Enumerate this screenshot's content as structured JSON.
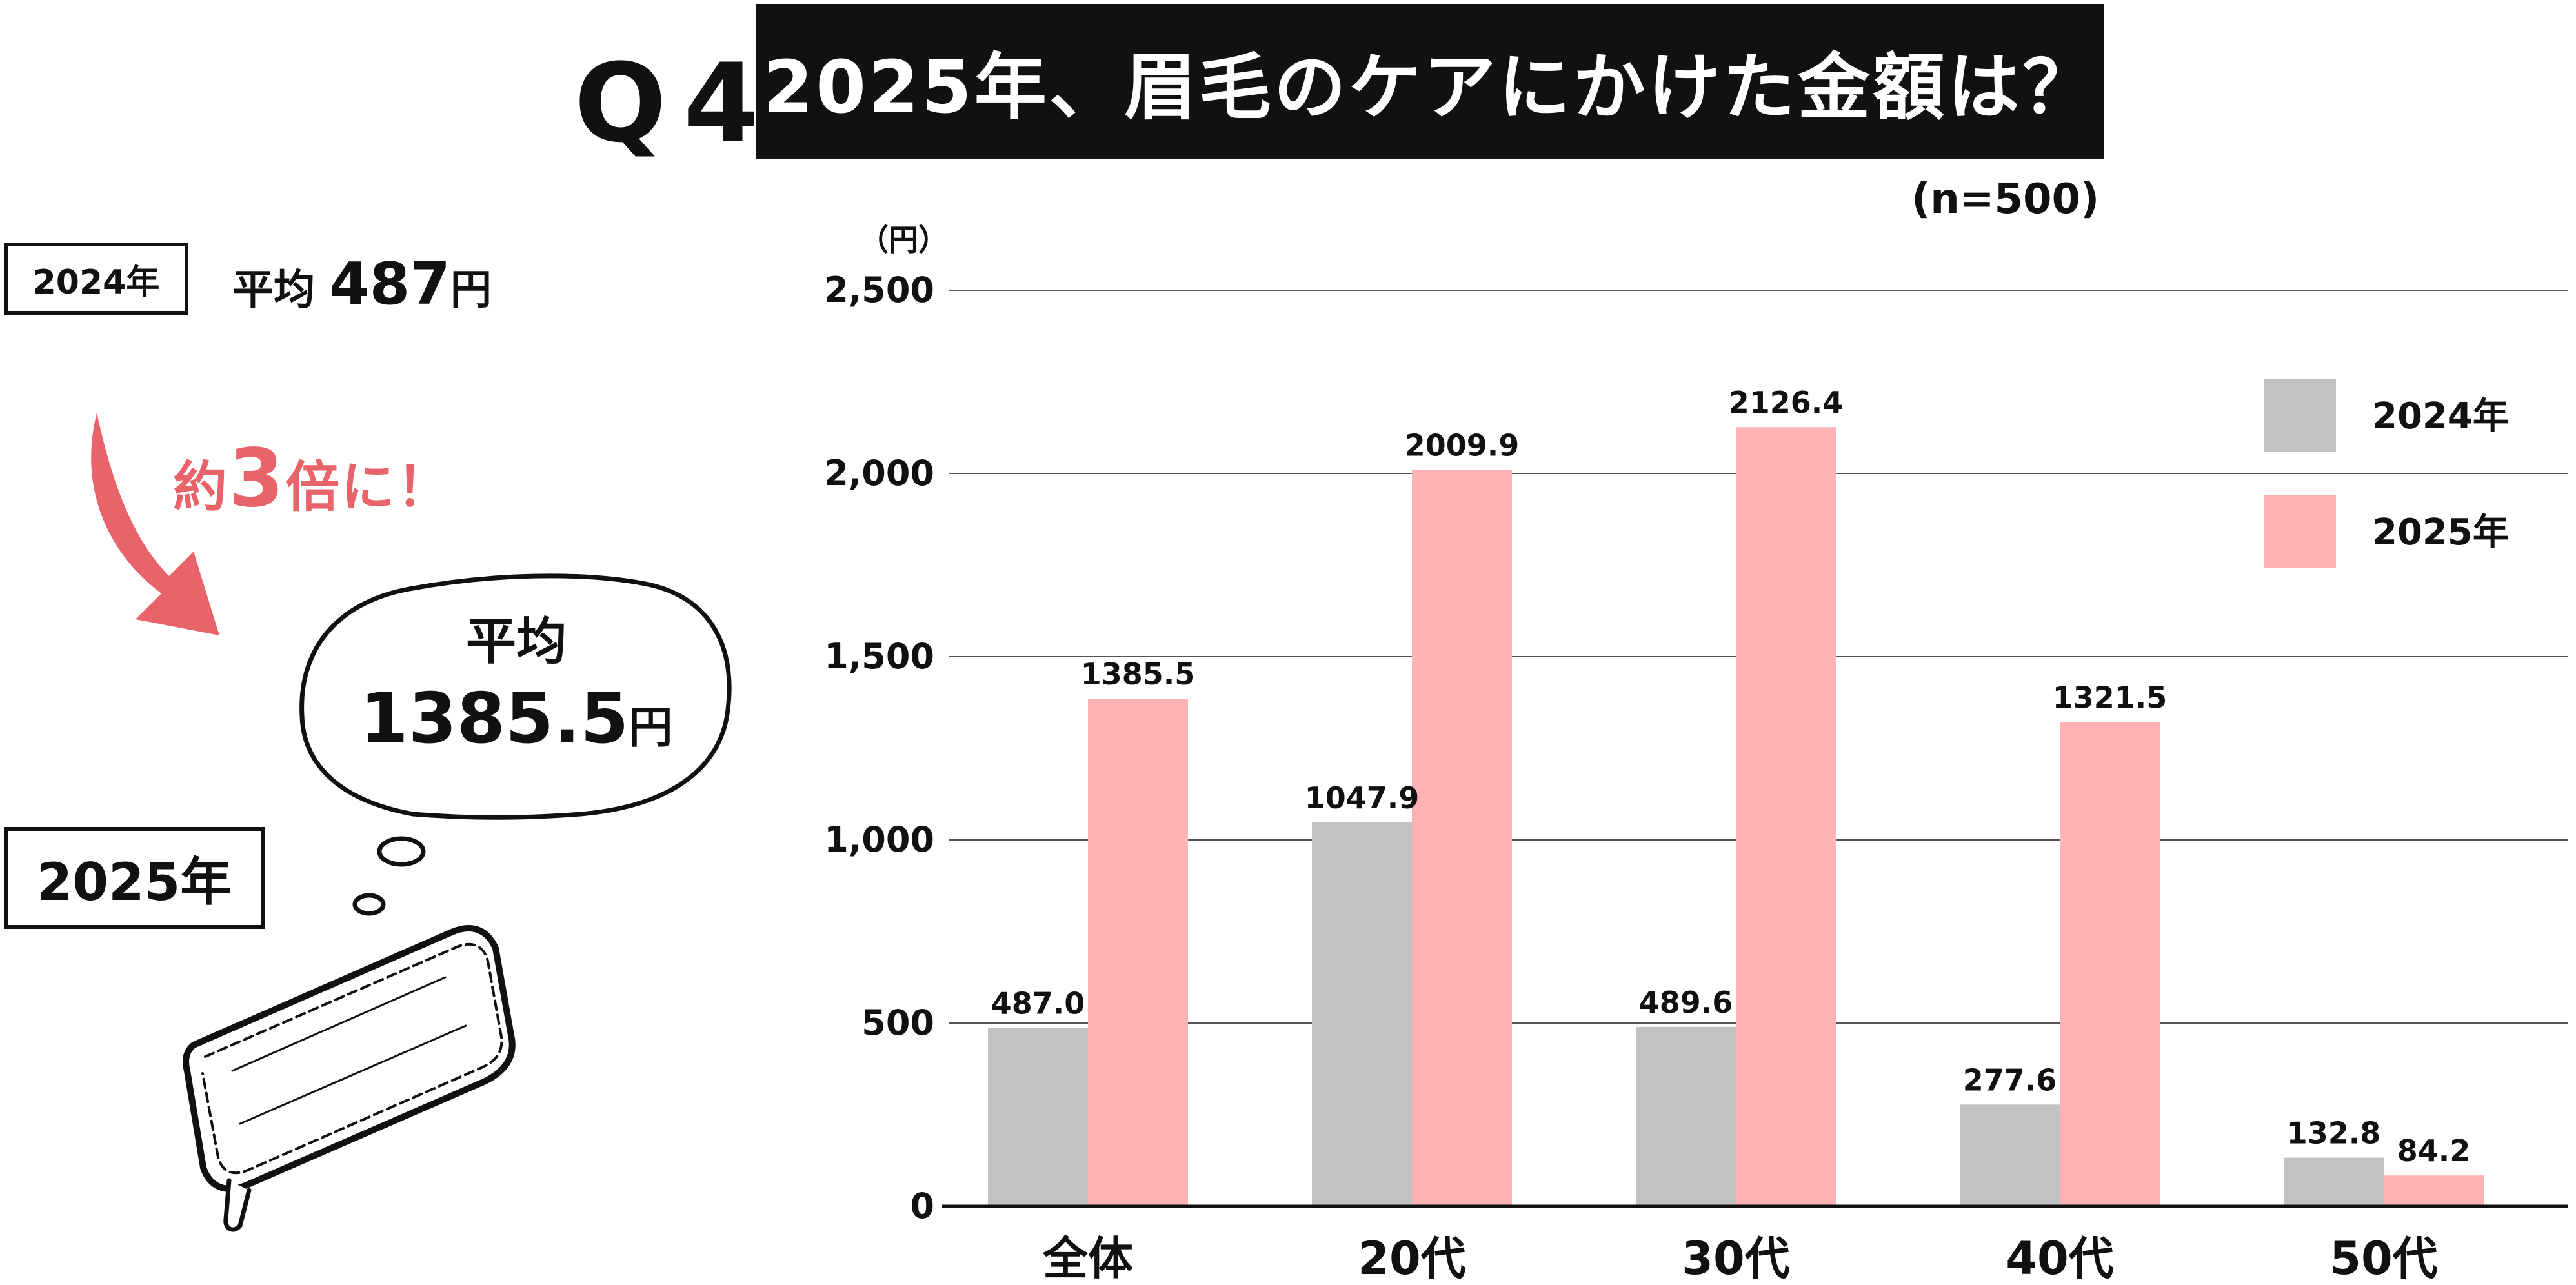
{
  "header": {
    "question_label": "Q4",
    "title": "2025年、眉毛のケアにかけた金額は？"
  },
  "sample_size": "(n=500)",
  "summary": {
    "year2024_label": "2024年",
    "avg_prefix": "平均",
    "avg2024_value": "487",
    "unit": "円",
    "ratio_prefix": "約",
    "ratio_number": "3",
    "ratio_suffix": "倍に！",
    "bubble_line1": "平均",
    "bubble_value": "1385.5",
    "year2025_label": "2025年"
  },
  "icons": {
    "arrow": "curved-arrow-icon",
    "bubble": "thought-bubble-icon",
    "wallet": "wallet-icon"
  },
  "colors": {
    "series2024": "#c2c2c2",
    "series2025": "#fdb2b4",
    "accent": "#e9636b",
    "title_bg": "#111111"
  },
  "chart_data": {
    "type": "bar",
    "ylabel": "（円）",
    "categories": [
      "全体",
      "20代",
      "30代",
      "40代",
      "50代"
    ],
    "series": [
      {
        "name": "2024年",
        "values": [
          487.0,
          1047.9,
          489.6,
          277.6,
          132.8
        ],
        "labels": [
          "487.0",
          "1047.9",
          "489.6",
          "277.6",
          "132.8"
        ]
      },
      {
        "name": "2025年",
        "values": [
          1385.5,
          2009.9,
          2126.4,
          1321.5,
          84.2
        ],
        "labels": [
          "1385.5",
          "2009.9",
          "2126.4",
          "1321.5",
          "84.2"
        ]
      }
    ],
    "ylim": [
      0,
      2500
    ],
    "yticks": [
      0,
      500,
      1000,
      1500,
      2000,
      2500
    ],
    "ytick_labels": [
      "0",
      "500",
      "1,000",
      "1,500",
      "2,000",
      "2,500"
    ],
    "grid": true,
    "legend": "top-right"
  }
}
